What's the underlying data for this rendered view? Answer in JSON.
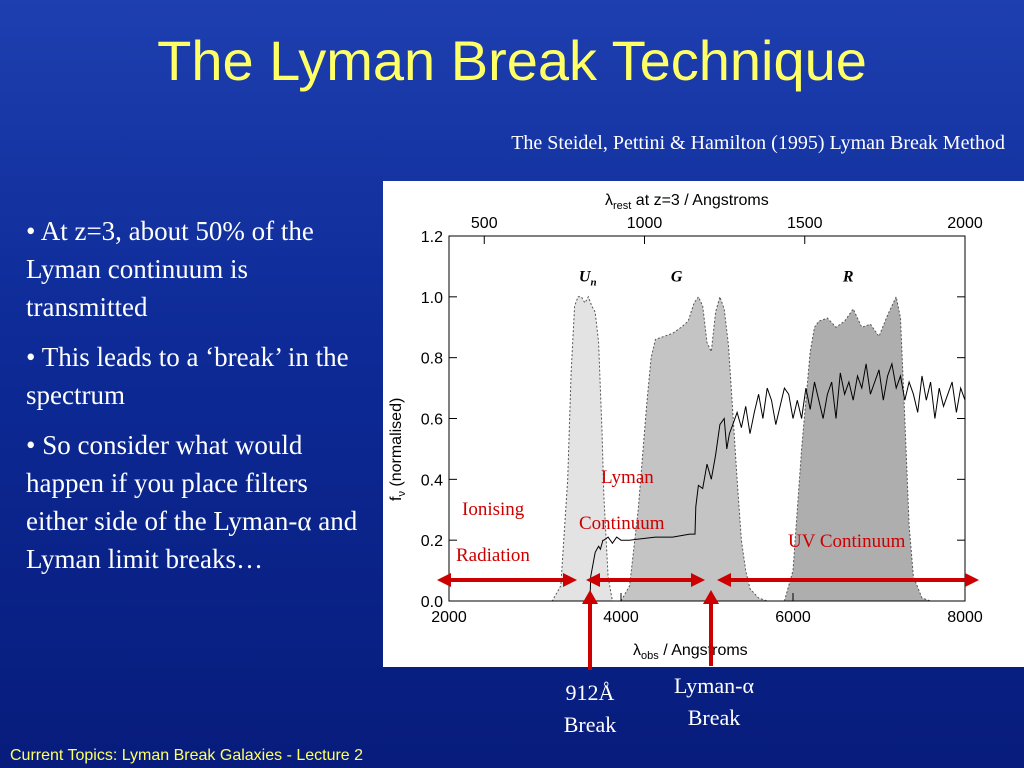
{
  "title": "The Lyman Break Technique",
  "subtitle": "The Steidel, Pettini & Hamilton (1995) Lyman Break Method",
  "bullets": [
    "• At z=3, about 50% of the Lyman continuum is transmitted",
    "• This leads to a ‘break’ in the spectrum",
    "• So consider what would happen if you place filters either side of the Lyman-α and Lyman limit breaks…"
  ],
  "footer": "Current Topics:  Lyman Break Galaxies - Lecture 2",
  "annotations": {
    "ionising_line1": "Ionising",
    "ionising_line2": "Radiation",
    "lyman_line1": "Lyman",
    "lyman_line2": "Continuum",
    "uv": "UV Continuum",
    "break912_line1": "912Å",
    "break912_line2": "Break",
    "lya_line1": "Lyman-α",
    "lya_line2": "Break"
  },
  "colors": {
    "title": "#ffff66",
    "annotation_red": "#cc0000",
    "filter_U": "#e3e3e3",
    "filter_G": "#c4c4c4",
    "filter_R": "#aeaeae"
  },
  "chart_data": {
    "type": "area",
    "top_axis": {
      "label_symbol": "λ",
      "label_sub": "rest",
      "label_rest": " at z=3 / Angstroms",
      "ticks": [
        "500",
        "1000",
        "1500",
        "2000"
      ],
      "tick_values": [
        500,
        1000,
        1500,
        2000
      ],
      "range": [
        390,
        2000
      ]
    },
    "x_axis": {
      "label_symbol": "λ",
      "label_sub": "obs",
      "label_rest": " / Angstroms",
      "ticks": [
        "2000",
        "4000",
        "6000",
        "8000"
      ],
      "tick_values": [
        2000,
        4000,
        6000,
        8000
      ],
      "range": [
        2000,
        8000
      ]
    },
    "y_axis": {
      "label_symbol": "f",
      "label_sub": "ν",
      "label_rest": " (normalised)",
      "ticks": [
        "0.0",
        "0.2",
        "0.4",
        "0.6",
        "0.8",
        "1.0",
        "1.2"
      ],
      "tick_values": [
        0,
        0.2,
        0.4,
        0.6,
        0.8,
        1.0,
        1.2
      ],
      "range": [
        0,
        1.2
      ]
    },
    "filters": [
      {
        "name": "U",
        "sub": "n",
        "label_x": 3580,
        "x": [
          3100,
          3200,
          3300,
          3380,
          3420,
          3460,
          3500,
          3540,
          3580,
          3620,
          3660,
          3700,
          3740,
          3780,
          3800,
          3850,
          3900
        ],
        "y": [
          0,
          0,
          0.05,
          0.4,
          0.75,
          0.97,
          1.0,
          1.0,
          0.98,
          1.0,
          0.97,
          0.95,
          0.85,
          0.55,
          0.35,
          0.08,
          0
        ]
      },
      {
        "name": "G",
        "label_x": 4650,
        "x": [
          4000,
          4100,
          4200,
          4300,
          4350,
          4400,
          4500,
          4600,
          4700,
          4780,
          4850,
          4900,
          4950,
          5000,
          5050,
          5100,
          5150,
          5200,
          5250,
          5300,
          5350,
          5400,
          5450,
          5500,
          5600,
          5700
        ],
        "y": [
          0,
          0.05,
          0.3,
          0.65,
          0.8,
          0.86,
          0.87,
          0.88,
          0.9,
          0.92,
          0.98,
          1.0,
          0.97,
          0.85,
          0.82,
          0.95,
          1.0,
          0.96,
          0.84,
          0.62,
          0.4,
          0.2,
          0.1,
          0.04,
          0.01,
          0
        ]
      },
      {
        "name": "R",
        "label_x": 6650,
        "x": [
          5900,
          6000,
          6100,
          6200,
          6250,
          6300,
          6400,
          6500,
          6600,
          6700,
          6800,
          6900,
          7000,
          7100,
          7200,
          7250,
          7300,
          7350,
          7400,
          7500,
          7600
        ],
        "y": [
          0,
          0.1,
          0.5,
          0.82,
          0.9,
          0.92,
          0.93,
          0.9,
          0.92,
          0.96,
          0.9,
          0.91,
          0.87,
          0.94,
          1.0,
          0.93,
          0.6,
          0.25,
          0.08,
          0.01,
          0
        ]
      }
    ],
    "spectrum": {
      "x": [
        2000,
        3500,
        3640,
        3648,
        3700,
        3720,
        3740,
        3760,
        3790,
        3800,
        3850,
        3900,
        3950,
        4000,
        4100,
        4400,
        4600,
        4800,
        4860,
        4870,
        4900,
        4950,
        5000,
        5050,
        5100,
        5150,
        5200,
        5230,
        5260,
        5300,
        5350,
        5400,
        5450,
        5500,
        5550,
        5600,
        5650,
        5700,
        5750,
        5800,
        5850,
        5900,
        5950,
        6000,
        6050,
        6100,
        6150,
        6200,
        6250,
        6300,
        6350,
        6400,
        6450,
        6500,
        6550,
        6600,
        6650,
        6700,
        6750,
        6800,
        6850,
        6900,
        6950,
        7000,
        7050,
        7100,
        7150,
        7200,
        7250,
        7300,
        7350,
        7400,
        7450,
        7500,
        7550,
        7600,
        7650,
        7700,
        7750,
        7800,
        7850,
        7900,
        7950,
        8000
      ],
      "y": [
        0,
        0,
        0,
        0.08,
        0.16,
        0.17,
        0.18,
        0.17,
        0.2,
        0.2,
        0.21,
        0.19,
        0.21,
        0.2,
        0.2,
        0.21,
        0.21,
        0.22,
        0.22,
        0.31,
        0.38,
        0.37,
        0.45,
        0.4,
        0.48,
        0.58,
        0.6,
        0.5,
        0.55,
        0.58,
        0.62,
        0.57,
        0.64,
        0.55,
        0.62,
        0.68,
        0.6,
        0.7,
        0.66,
        0.58,
        0.64,
        0.7,
        0.68,
        0.6,
        0.66,
        0.6,
        0.7,
        0.63,
        0.72,
        0.66,
        0.6,
        0.68,
        0.72,
        0.6,
        0.75,
        0.68,
        0.72,
        0.66,
        0.74,
        0.7,
        0.78,
        0.68,
        0.72,
        0.76,
        0.66,
        0.74,
        0.78,
        0.7,
        0.74,
        0.66,
        0.72,
        0.68,
        0.62,
        0.74,
        0.66,
        0.72,
        0.6,
        0.7,
        0.64,
        0.68,
        0.72,
        0.62,
        0.7,
        0.66
      ]
    },
    "markers": {
      "break_912_obs": 3648,
      "lya_break_obs": 4860
    }
  }
}
